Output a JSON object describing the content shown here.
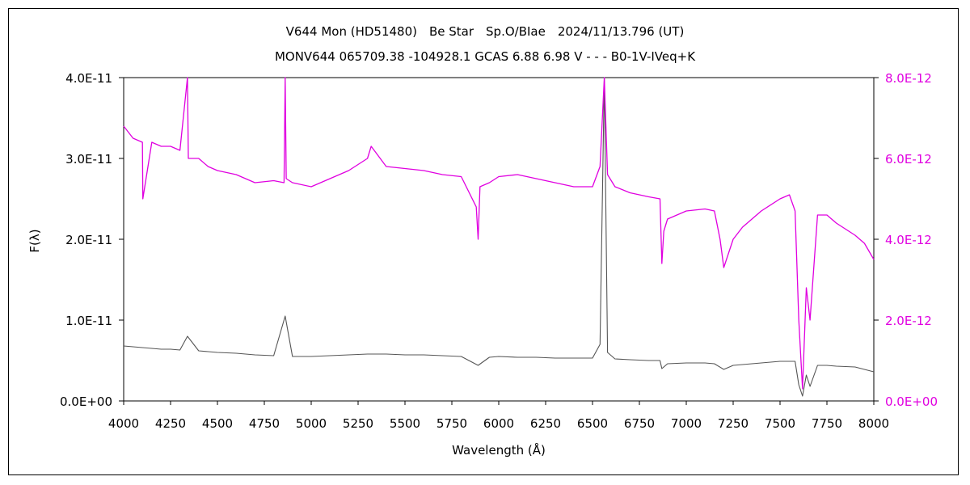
{
  "chart_data": {
    "type": "line",
    "title": "V644 Mon (HD51480)　Be Star　Sp.O/BIae　2024/11/13.796 (UT)",
    "subtitle": "MONV644 065709.38 -104928.1 GCAS 6.88 6.98 V - - - B0-1V-IVeq+K",
    "xlabel": "Wavelength (Å)",
    "ylabel": "F(λ)",
    "xlim": [
      4000,
      8000
    ],
    "ylim_left": [
      0,
      4e-11
    ],
    "ylim_right": [
      0,
      8e-12
    ],
    "x_ticks": [
      "4000",
      "4250",
      "4500",
      "4750",
      "5000",
      "5250",
      "5500",
      "5750",
      "6000",
      "6250",
      "6500",
      "6750",
      "7000",
      "7250",
      "7500",
      "7750",
      "8000"
    ],
    "y_ticks_left": [
      "0.0E+00",
      "1.0E-11",
      "2.0E-11",
      "3.0E-11",
      "4.0E-11"
    ],
    "y_ticks_right": [
      "0.0E+00",
      "2.0E-12",
      "4.0E-12",
      "6.0E-12",
      "8.0E-12"
    ],
    "colors": {
      "left_series": "#555555",
      "right_series": "#e000e0",
      "right_axis_text": "#e000e0"
    },
    "series": [
      {
        "axis": "left",
        "x": [
          4000,
          4050,
          4100,
          4150,
          4200,
          4250,
          4300,
          4340,
          4400,
          4450,
          4500,
          4600,
          4700,
          4800,
          4861,
          4900,
          5000,
          5100,
          5200,
          5300,
          5400,
          5500,
          5600,
          5700,
          5800,
          5890,
          5950,
          6000,
          6100,
          6200,
          6300,
          6400,
          6500,
          6540,
          6563,
          6580,
          6620,
          6700,
          6800,
          6860,
          6870,
          6900,
          7000,
          7100,
          7150,
          7200,
          7250,
          7300,
          7400,
          7500,
          7580,
          7600,
          7620,
          7640,
          7660,
          7700,
          7750,
          7800,
          7900,
          8000
        ],
        "y": [
          6.8e-12,
          6.7e-12,
          6.6e-12,
          6.5e-12,
          6.4e-12,
          6.4e-12,
          6.3e-12,
          8e-12,
          6.2e-12,
          6.1e-12,
          6e-12,
          5.9e-12,
          5.7e-12,
          5.6e-12,
          1.05e-11,
          5.5e-12,
          5.5e-12,
          5.6e-12,
          5.7e-12,
          5.8e-12,
          5.8e-12,
          5.7e-12,
          5.7e-12,
          5.6e-12,
          5.5e-12,
          4.4e-12,
          5.4e-12,
          5.5e-12,
          5.4e-12,
          5.4e-12,
          5.3e-12,
          5.3e-12,
          5.3e-12,
          7e-12,
          4e-11,
          6e-12,
          5.2e-12,
          5.1e-12,
          5e-12,
          5e-12,
          4e-12,
          4.6e-12,
          4.7e-12,
          4.7e-12,
          4.6e-12,
          3.9e-12,
          4.4e-12,
          4.5e-12,
          4.7e-12,
          4.9e-12,
          4.9e-12,
          2e-12,
          6e-13,
          3.2e-12,
          1.8e-12,
          4.4e-12,
          4.4e-12,
          4.3e-12,
          4.2e-12,
          3.6e-12
        ]
      },
      {
        "axis": "right",
        "x": [
          4000,
          4050,
          4100,
          4102,
          4150,
          4200,
          4250,
          4300,
          4340,
          4345,
          4400,
          4450,
          4500,
          4600,
          4700,
          4800,
          4855,
          4861,
          4867,
          4900,
          5000,
          5100,
          5200,
          5300,
          5320,
          5400,
          5500,
          5600,
          5700,
          5800,
          5880,
          5890,
          5900,
          5950,
          6000,
          6100,
          6200,
          6300,
          6400,
          6500,
          6540,
          6563,
          6580,
          6620,
          6700,
          6800,
          6860,
          6870,
          6880,
          6900,
          7000,
          7100,
          7150,
          7180,
          7200,
          7250,
          7300,
          7400,
          7500,
          7550,
          7580,
          7600,
          7620,
          7640,
          7660,
          7700,
          7750,
          7800,
          7900,
          7950,
          8000
        ],
        "y": [
          6.8e-12,
          6.5e-12,
          6.4e-12,
          5e-12,
          6.4e-12,
          6.3e-12,
          6.3e-12,
          6.2e-12,
          8e-12,
          6e-12,
          6e-12,
          5.8e-12,
          5.7e-12,
          5.6e-12,
          5.4e-12,
          5.45e-12,
          5.4e-12,
          8e-12,
          5.5e-12,
          5.4e-12,
          5.3e-12,
          5.5e-12,
          5.7e-12,
          6e-12,
          6.3e-12,
          5.8e-12,
          5.75e-12,
          5.7e-12,
          5.6e-12,
          5.55e-12,
          4.8e-12,
          4e-12,
          5.3e-12,
          5.4e-12,
          5.55e-12,
          5.6e-12,
          5.5e-12,
          5.4e-12,
          5.3e-12,
          5.3e-12,
          5.8e-12,
          8e-12,
          5.6e-12,
          5.3e-12,
          5.15e-12,
          5.05e-12,
          5e-12,
          3.4e-12,
          4.2e-12,
          4.5e-12,
          4.7e-12,
          4.75e-12,
          4.7e-12,
          4e-12,
          3.3e-12,
          4e-12,
          4.3e-12,
          4.7e-12,
          5e-12,
          5.1e-12,
          4.7e-12,
          2e-12,
          3e-13,
          2.8e-12,
          2e-12,
          4.6e-12,
          4.6e-12,
          4.4e-12,
          4.1e-12,
          3.9e-12,
          3.5e-12
        ]
      }
    ]
  }
}
